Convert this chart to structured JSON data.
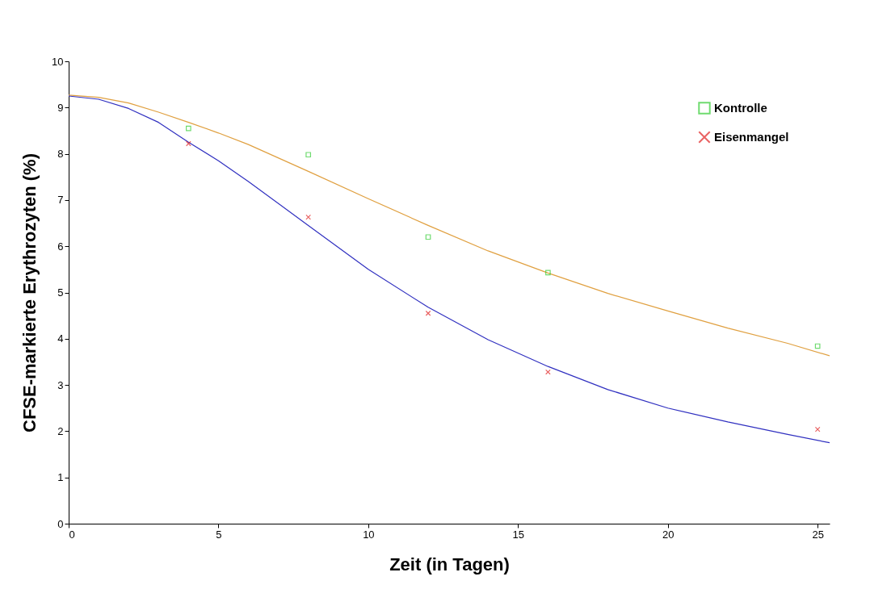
{
  "chart_data": {
    "type": "line",
    "xlabel": "Zeit (in Tagen)",
    "ylabel": "CFSE-markierte Erythrozyten (%)",
    "xlim": [
      0,
      25.4
    ],
    "xticks": [
      0,
      5,
      10,
      15,
      20,
      25
    ],
    "ylim": [
      0,
      10
    ],
    "yticks": [
      0,
      1,
      2,
      3,
      4,
      5,
      6,
      7,
      8,
      9,
      10
    ],
    "grid": false,
    "legend": "top right",
    "series": [
      {
        "color": "#e0a040",
        "x": [
          0,
          1,
          2,
          3,
          4,
          5,
          6,
          8,
          10,
          12,
          14,
          16,
          18,
          20,
          22,
          24,
          25.4
        ],
        "values": [
          9.27,
          9.22,
          9.1,
          8.9,
          8.68,
          8.45,
          8.2,
          7.62,
          7.03,
          6.45,
          5.9,
          5.42,
          4.98,
          4.6,
          4.23,
          3.9,
          3.63
        ]
      },
      {
        "color": "#3030c0",
        "x": [
          0,
          1,
          2,
          3,
          4,
          5,
          6,
          8,
          10,
          12,
          14,
          16,
          18,
          20,
          22,
          24,
          25.4
        ],
        "values": [
          9.25,
          9.18,
          8.98,
          8.68,
          8.25,
          7.85,
          7.4,
          6.45,
          5.5,
          4.68,
          3.98,
          3.4,
          2.9,
          2.5,
          2.2,
          1.93,
          1.75
        ]
      },
      {
        "type": "scatter",
        "name": "Kontrolle",
        "color": "#33cc33",
        "marker": "square",
        "x": [
          4,
          8,
          12,
          16,
          25
        ],
        "values": [
          8.55,
          7.98,
          6.2,
          5.43,
          3.84
        ]
      },
      {
        "type": "scatter",
        "name": "Eisenmangel",
        "color": "#e02020",
        "marker": "cross",
        "x": [
          4,
          8,
          12,
          16,
          25
        ],
        "values": [
          8.22,
          6.63,
          4.55,
          3.28,
          2.04
        ]
      }
    ]
  }
}
